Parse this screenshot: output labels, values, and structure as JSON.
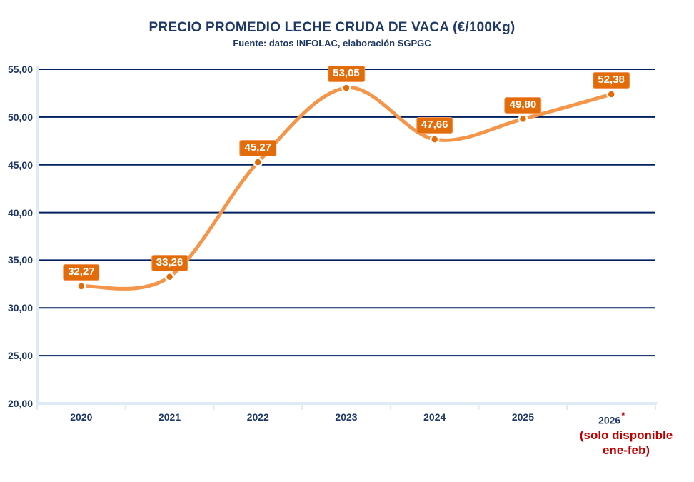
{
  "title": "PRECIO PROMEDIO LECHE CRUDA DE VACA (€/100Kg)",
  "subtitle": "Fuente: datos INFOLAC, elaboración SGPGC",
  "chart_data": {
    "type": "line",
    "title": "PRECIO PROMEDIO LECHE CRUDA DE VACA (€/100Kg)",
    "subtitle": "Fuente: datos INFOLAC, elaboración SGPGC",
    "categories": [
      "2020",
      "2021",
      "2022",
      "2023",
      "2024",
      "2025",
      "2026"
    ],
    "values": [
      32.27,
      33.26,
      45.27,
      53.05,
      47.66,
      49.8,
      52.38
    ],
    "data_labels": [
      "32,27",
      "33,26",
      "45,27",
      "53,05",
      "47,66",
      "49,80",
      "52,38"
    ],
    "y_tick_labels": [
      "20,00",
      "25,00",
      "30,00",
      "35,00",
      "40,00",
      "45,00",
      "50,00",
      "55,00"
    ],
    "ylim": [
      20,
      55
    ],
    "y_step": 5,
    "xlabel": "",
    "ylabel": "",
    "grid": "horizontal",
    "legend": "none",
    "smooth": true,
    "footnote_category": "2026",
    "footnote_marker": "*",
    "footnote_lines": [
      "(solo disponible",
      "ene-feb)"
    ]
  },
  "colors": {
    "background": "#FFFFFF",
    "line": "#F4954A",
    "marker_fill": "#E36C0A",
    "marker_ring": "#FFFFFF",
    "label_box": "#E36C0A",
    "label_text": "#FFFFFF",
    "axis_text": "#1F3864",
    "gridline": "#002060",
    "axis_line": "#DEEAF6",
    "note_red": "#C00000"
  }
}
